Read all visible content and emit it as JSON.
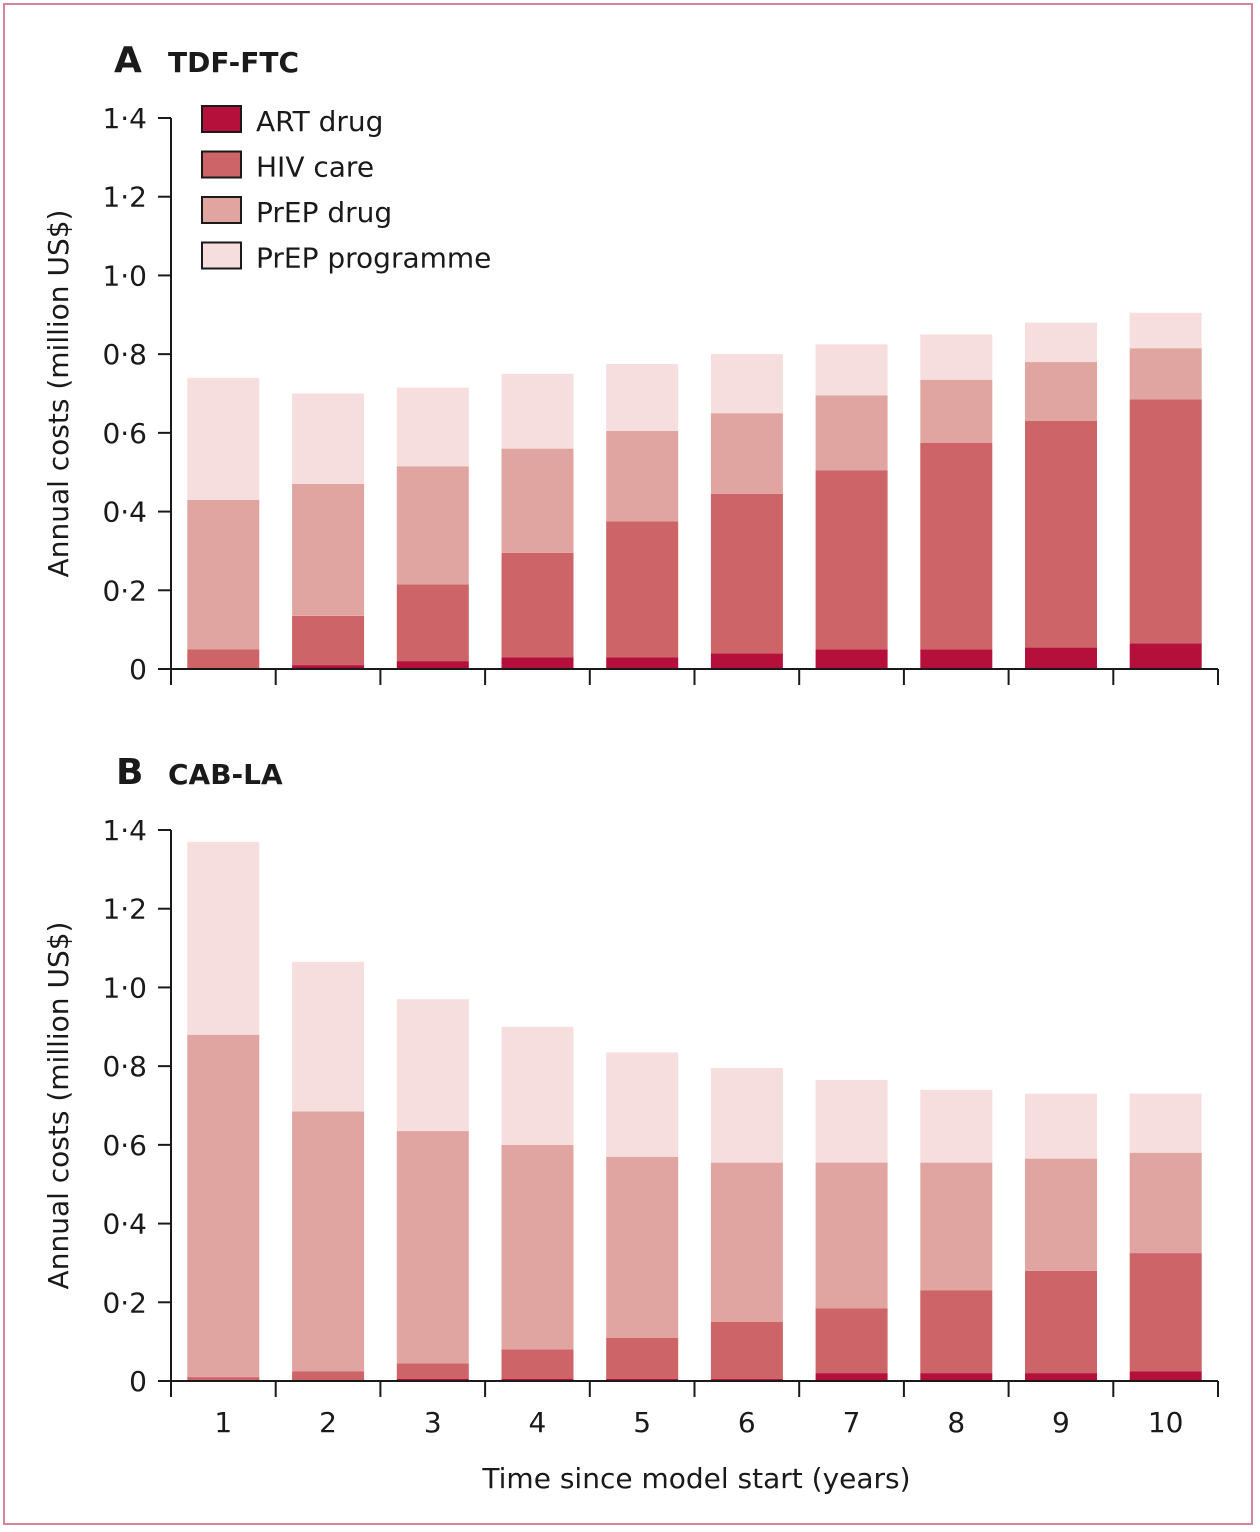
{
  "chart_data": [
    {
      "type": "bar",
      "stacked": true,
      "panel_letter": "A",
      "title": "TDF-FTC",
      "xlabel": "",
      "ylabel": "Annual costs (million US$)",
      "ylim": [
        0,
        1.4
      ],
      "yticks": [
        0,
        0.2,
        0.4,
        0.6,
        0.8,
        1.0,
        1.2,
        1.4
      ],
      "ytick_labels": [
        "0",
        "0·2",
        "0·4",
        "0·6",
        "0·8",
        "1·0",
        "1·2",
        "1·4"
      ],
      "categories": [
        "1",
        "2",
        "3",
        "4",
        "5",
        "6",
        "7",
        "8",
        "9",
        "10"
      ],
      "show_category_labels": false,
      "legend": {
        "position": "top-left"
      },
      "series": [
        {
          "name": "ART drug",
          "color": "#b5103c",
          "values": [
            0.0,
            0.01,
            0.02,
            0.03,
            0.03,
            0.04,
            0.05,
            0.05,
            0.055,
            0.065
          ]
        },
        {
          "name": "HIV care",
          "color": "#cc6468",
          "values": [
            0.05,
            0.125,
            0.195,
            0.265,
            0.345,
            0.405,
            0.455,
            0.525,
            0.575,
            0.62
          ]
        },
        {
          "name": "PrEP drug",
          "color": "#e0a5a1",
          "values": [
            0.38,
            0.335,
            0.3,
            0.265,
            0.23,
            0.205,
            0.19,
            0.16,
            0.15,
            0.13
          ]
        },
        {
          "name": "PrEP programme",
          "color": "#f5dedd",
          "values": [
            0.31,
            0.23,
            0.2,
            0.19,
            0.17,
            0.15,
            0.13,
            0.115,
            0.1,
            0.09
          ]
        }
      ]
    },
    {
      "type": "bar",
      "stacked": true,
      "panel_letter": "B",
      "title": "CAB-LA",
      "xlabel": "Time since model start (years)",
      "ylabel": "Annual costs (million US$)",
      "ylim": [
        0,
        1.4
      ],
      "yticks": [
        0,
        0.2,
        0.4,
        0.6,
        0.8,
        1.0,
        1.2,
        1.4
      ],
      "ytick_labels": [
        "0",
        "0·2",
        "0·4",
        "0·6",
        "0·8",
        "1·0",
        "1·2",
        "1·4"
      ],
      "categories": [
        "1",
        "2",
        "3",
        "4",
        "5",
        "6",
        "7",
        "8",
        "9",
        "10"
      ],
      "show_category_labels": true,
      "series": [
        {
          "name": "ART drug",
          "color": "#b5103c",
          "values": [
            0.0,
            0.0,
            0.005,
            0.005,
            0.005,
            0.005,
            0.02,
            0.02,
            0.02,
            0.025
          ]
        },
        {
          "name": "HIV care",
          "color": "#cc6468",
          "values": [
            0.01,
            0.025,
            0.04,
            0.075,
            0.105,
            0.145,
            0.165,
            0.21,
            0.26,
            0.3
          ]
        },
        {
          "name": "PrEP drug",
          "color": "#e0a5a1",
          "values": [
            0.87,
            0.66,
            0.59,
            0.52,
            0.46,
            0.405,
            0.37,
            0.325,
            0.285,
            0.255
          ]
        },
        {
          "name": "PrEP programme",
          "color": "#f5dedd",
          "values": [
            0.49,
            0.38,
            0.335,
            0.3,
            0.265,
            0.24,
            0.21,
            0.185,
            0.165,
            0.15
          ]
        }
      ]
    }
  ]
}
